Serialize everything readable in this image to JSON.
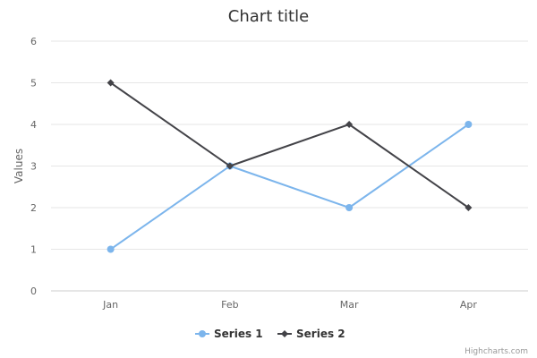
{
  "chart_data": {
    "type": "line",
    "title": "Chart title",
    "xlabel": "",
    "ylabel": "Values",
    "categories": [
      "Jan",
      "Feb",
      "Mar",
      "Apr"
    ],
    "ylim": [
      0,
      6
    ],
    "yticks": [
      0,
      1,
      2,
      3,
      4,
      5,
      6
    ],
    "grid": true,
    "legend_position": "bottom-center",
    "series": [
      {
        "name": "Series 1",
        "values": [
          1,
          3,
          2,
          4
        ],
        "color": "#7cb5ec",
        "marker": "circle"
      },
      {
        "name": "Series 2",
        "values": [
          5,
          3,
          4,
          2
        ],
        "color": "#434348",
        "marker": "diamond"
      }
    ]
  },
  "credits": "Highcharts.com",
  "colors": {
    "grid": "#e6e6e6",
    "axis_line": "#cccccc"
  }
}
